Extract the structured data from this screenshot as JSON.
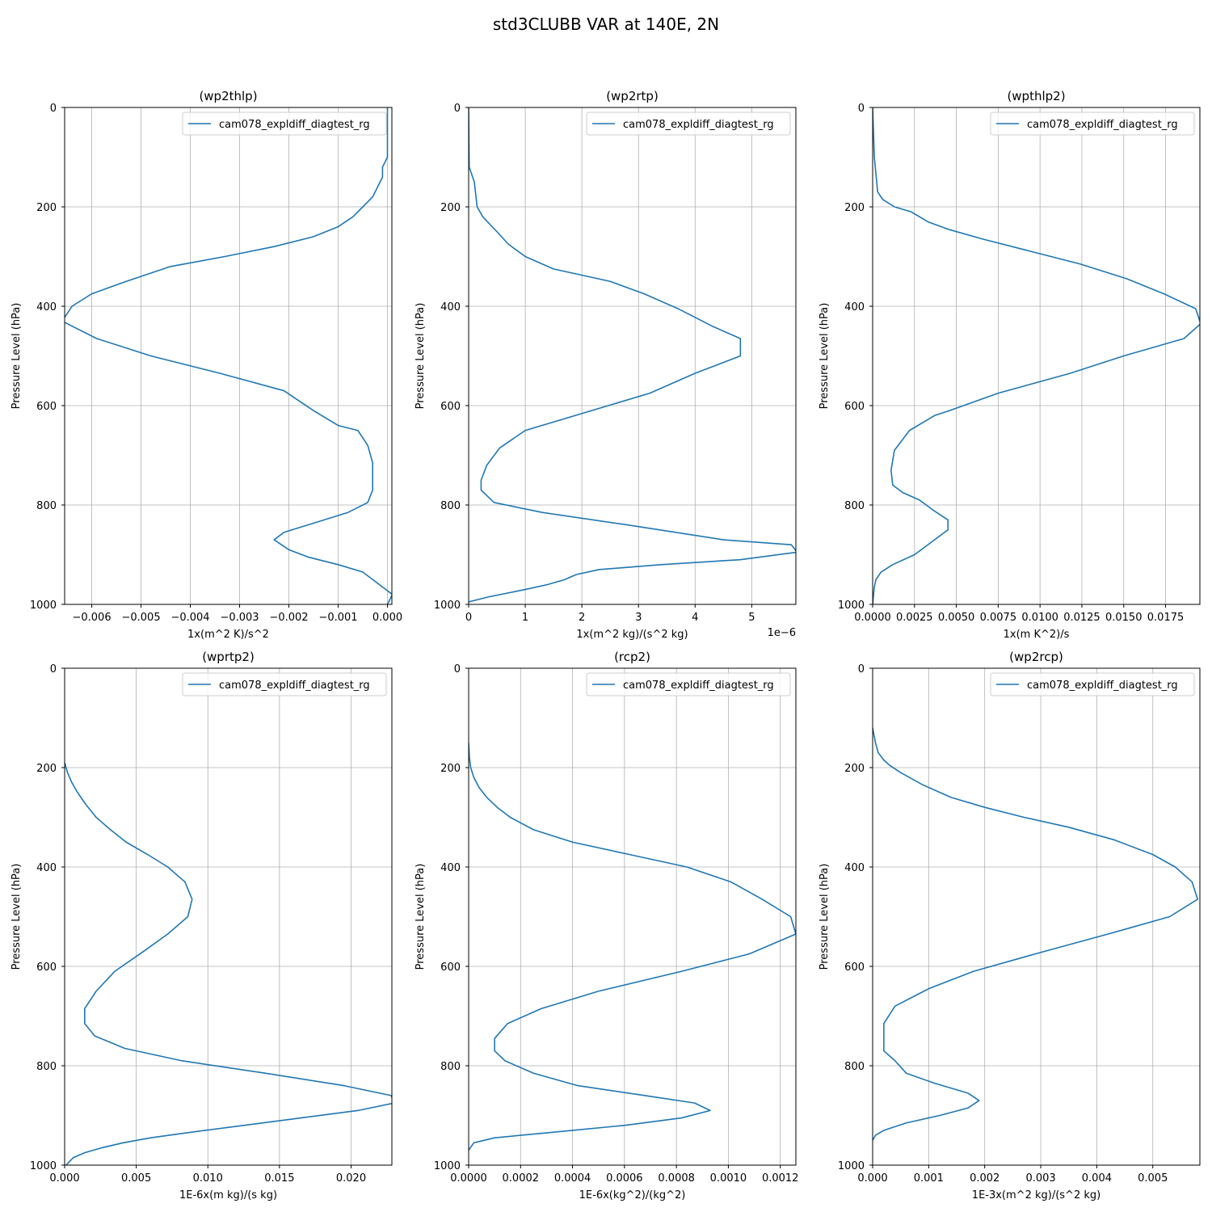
{
  "figure_title": "std3CLUBB VAR at 140E, 2N",
  "colors": {
    "line": "#1f77b4",
    "grid": "#b0b0b0"
  },
  "chart_data": [
    {
      "type": "line",
      "title": "(wp2thlp)",
      "xlabel": "1x(m^2 K)/s^2",
      "ylabel": "Pressure Level (hPa)",
      "legend": "cam078_expldiff_diagtest_rg",
      "legend_position": "upper right",
      "grid": true,
      "xlim": [
        -0.00655,
        9e-05
      ],
      "ylim": [
        1000,
        0
      ],
      "xticks": [
        -0.006,
        -0.005,
        -0.004,
        -0.003,
        -0.002,
        -0.001,
        0.0
      ],
      "xtick_labels": [
        "−0.006",
        "−0.005",
        "−0.004",
        "−0.003",
        "−0.002",
        "−0.001",
        "0.000"
      ],
      "yticks": [
        0,
        200,
        400,
        600,
        800,
        1000
      ],
      "ytick_labels": [
        "0",
        "200",
        "400",
        "600",
        "800",
        "1000"
      ],
      "offset_label": "",
      "series": [
        {
          "name": "cam078_expldiff_diagtest_rg",
          "x": [
            0.0,
            0.0,
            -0.0001,
            -0.0001,
            -0.0002,
            -0.0003,
            -0.0005,
            -0.0007,
            -0.001,
            -0.0015,
            -0.0023,
            -0.0033,
            -0.0044,
            -0.0053,
            -0.006,
            -0.0064,
            -0.0066,
            -0.0059,
            -0.0048,
            -0.0034,
            -0.0021,
            -0.0015,
            -0.001,
            -0.0006,
            -0.0004,
            -0.0003,
            -0.0003,
            -0.0004,
            -0.0008,
            -0.0021,
            -0.0023,
            -0.002,
            -0.0016,
            -0.001,
            -0.0005,
            -0.0003,
            -0.0001,
            0.0001,
            0.0
          ],
          "y": [
            0,
            100,
            120,
            140,
            160,
            180,
            200,
            220,
            240,
            260,
            280,
            300,
            320,
            350,
            375,
            400,
            430,
            465,
            500,
            535,
            570,
            610,
            640,
            650,
            680,
            715,
            770,
            795,
            815,
            855,
            870,
            890,
            905,
            920,
            935,
            950,
            965,
            980,
            1000
          ]
        }
      ]
    },
    {
      "type": "line",
      "title": "(wp2rtp)",
      "xlabel": "1x(m^2 kg)/(s^2 kg)",
      "ylabel": "Pressure Level (hPa)",
      "legend": "cam078_expldiff_diagtest_rg",
      "legend_position": "upper right",
      "grid": true,
      "xlim": [
        0,
        5.78e-06
      ],
      "ylim": [
        1000,
        0
      ],
      "xticks": [
        0,
        1e-06,
        2e-06,
        3e-06,
        4e-06,
        5e-06
      ],
      "xtick_labels": [
        "0",
        "1",
        "2",
        "3",
        "4",
        "5"
      ],
      "yticks": [
        0,
        200,
        400,
        600,
        800,
        1000
      ],
      "ytick_labels": [
        "0",
        "200",
        "400",
        "600",
        "800",
        "1000"
      ],
      "offset_label": "1e−6",
      "series": [
        {
          "name": "cam078_expldiff_diagtest_rg",
          "x": [
            0,
            1e-08,
            1e-07,
            1.5e-07,
            2.5e-07,
            5e-07,
            7e-07,
            1e-06,
            1.5e-06,
            2.5e-06,
            3.1e-06,
            3.7e-06,
            4.3e-06,
            4.8e-06,
            4.8e-06,
            4e-06,
            3.2e-06,
            1e-06,
            5.5e-07,
            3.2e-07,
            2.2e-07,
            2.2e-07,
            4.5e-07,
            1.3e-06,
            2.8e-06,
            4.5e-06,
            5.7e-06,
            5.8e-06,
            4.8e-06,
            3.4e-06,
            2.3e-06,
            1.9e-06,
            1.8e-06,
            1.7e-06,
            1.4e-06,
            1e-06,
            3.5e-07,
            0
          ],
          "y": [
            0,
            120,
            150,
            200,
            220,
            250,
            275,
            300,
            325,
            350,
            375,
            405,
            440,
            465,
            500,
            535,
            575,
            650,
            685,
            720,
            750,
            770,
            795,
            815,
            840,
            870,
            880,
            895,
            910,
            920,
            930,
            940,
            945,
            950,
            960,
            970,
            985,
            995
          ]
        }
      ]
    },
    {
      "type": "line",
      "title": "(wpthlp2)",
      "xlabel": "1x(m K^2)/s",
      "ylabel": "Pressure Level (hPa)",
      "legend": "cam078_expldiff_diagtest_rg",
      "legend_position": "upper right",
      "grid": true,
      "xlim": [
        0,
        0.01955
      ],
      "ylim": [
        1000,
        0
      ],
      "xticks": [
        0,
        0.0025,
        0.005,
        0.0075,
        0.01,
        0.0125,
        0.015,
        0.0175
      ],
      "xtick_labels": [
        "0.0000",
        "0.0025",
        "0.0050",
        "0.0075",
        "0.0100",
        "0.0125",
        "0.0150",
        "0.0175"
      ],
      "yticks": [
        0,
        200,
        400,
        600,
        800,
        1000
      ],
      "ytick_labels": [
        "0",
        "200",
        "400",
        "600",
        "800",
        "1000"
      ],
      "offset_label": "",
      "series": [
        {
          "name": "cam078_expldiff_diagtest_rg",
          "x": [
            0,
            0.0001,
            0.0003,
            0.0006,
            0.0013,
            0.0023,
            0.0033,
            0.0045,
            0.0066,
            0.0095,
            0.0124,
            0.0152,
            0.0174,
            0.0193,
            0.0196,
            0.0186,
            0.015,
            0.0118,
            0.0075,
            0.0046,
            0.0037,
            0.0022,
            0.0013,
            0.0011,
            0.0012,
            0.0018,
            0.0028,
            0.0036,
            0.0045,
            0.0045,
            0.0035,
            0.0025,
            0.0012,
            0.0005,
            0.0002,
            0.0001,
            0
          ],
          "y": [
            0,
            100,
            170,
            185,
            200,
            210,
            230,
            245,
            265,
            290,
            315,
            345,
            375,
            405,
            435,
            465,
            500,
            535,
            575,
            610,
            620,
            650,
            690,
            730,
            760,
            775,
            790,
            810,
            830,
            850,
            875,
            900,
            920,
            935,
            950,
            965,
            1000
          ]
        }
      ]
    },
    {
      "type": "line",
      "title": "(wprtp2)",
      "xlabel": "1E-6x(m kg)/(s kg)",
      "ylabel": "Pressure Level (hPa)",
      "legend": "cam078_expldiff_diagtest_rg",
      "legend_position": "upper right",
      "grid": true,
      "xlim": [
        0,
        0.02285
      ],
      "ylim": [
        1000,
        0
      ],
      "xticks": [
        0,
        0.005,
        0.01,
        0.015,
        0.02
      ],
      "xtick_labels": [
        "0.000",
        "0.005",
        "0.010",
        "0.015",
        "0.020"
      ],
      "yticks": [
        0,
        200,
        400,
        600,
        800,
        1000
      ],
      "ytick_labels": [
        "0",
        "200",
        "400",
        "600",
        "800",
        "1000"
      ],
      "offset_label": "",
      "series": [
        {
          "name": "cam078_expldiff_diagtest_rg",
          "x": [
            0,
            0.0002,
            0.0005,
            0.0009,
            0.0015,
            0.0022,
            0.0032,
            0.0043,
            0.0058,
            0.0072,
            0.0084,
            0.0089,
            0.0086,
            0.0072,
            0.0055,
            0.0035,
            0.0022,
            0.0014,
            0.0014,
            0.0021,
            0.0042,
            0.0082,
            0.014,
            0.0195,
            0.0228,
            0.023,
            0.0205,
            0.0165,
            0.0125,
            0.0085,
            0.006,
            0.0041,
            0.0026,
            0.0014,
            0.0006,
            0.0001
          ],
          "y": [
            190,
            210,
            230,
            250,
            275,
            300,
            325,
            350,
            375,
            400,
            430,
            465,
            500,
            535,
            570,
            610,
            650,
            685,
            715,
            740,
            765,
            790,
            815,
            840,
            860,
            875,
            890,
            905,
            920,
            935,
            945,
            955,
            965,
            975,
            985,
            1000
          ]
        }
      ]
    },
    {
      "type": "line",
      "title": "(rcp2)",
      "xlabel": "1E-6x(kg^2)/(kg^2)",
      "ylabel": "Pressure Level (hPa)",
      "legend": "cam078_expldiff_diagtest_rg",
      "legend_position": "upper right",
      "grid": true,
      "xlim": [
        0,
        0.00126
      ],
      "ylim": [
        1000,
        0
      ],
      "xticks": [
        0,
        0.0002,
        0.0004,
        0.0006,
        0.0008,
        0.001,
        0.0012
      ],
      "xtick_labels": [
        "0.0000",
        "0.0002",
        "0.0004",
        "0.0006",
        "0.0008",
        "0.0010",
        "0.0012"
      ],
      "yticks": [
        0,
        200,
        400,
        600,
        800,
        1000
      ],
      "ytick_labels": [
        "0",
        "200",
        "400",
        "600",
        "800",
        "1000"
      ],
      "offset_label": "",
      "series": [
        {
          "name": "cam078_expldiff_diagtest_rg",
          "x": [
            0,
            3e-06,
            8e-06,
            2e-05,
            4e-05,
            7e-05,
            0.00011,
            0.00016,
            0.00025,
            0.0004,
            0.00062,
            0.00084,
            0.00101,
            0.00113,
            0.00124,
            0.00126,
            0.00108,
            0.00082,
            0.0005,
            0.00028,
            0.00015,
            0.0001,
            0.0001,
            0.00014,
            0.00025,
            0.00042,
            0.00068,
            0.00087,
            0.00093,
            0.00082,
            0.0006,
            0.0003,
            0.0001,
            2e-05,
            0
          ],
          "y": [
            150,
            180,
            200,
            220,
            240,
            260,
            280,
            300,
            325,
            350,
            375,
            400,
            430,
            465,
            500,
            535,
            575,
            610,
            650,
            685,
            715,
            745,
            770,
            790,
            815,
            840,
            860,
            875,
            890,
            905,
            920,
            935,
            945,
            955,
            970
          ]
        }
      ]
    },
    {
      "type": "line",
      "title": "(wp2rcp)",
      "xlabel": "1E-3x(m^2 kg)/(s^2 kg)",
      "ylabel": "Pressure Level (hPa)",
      "legend": "cam078_expldiff_diagtest_rg",
      "legend_position": "upper right",
      "grid": true,
      "xlim": [
        0,
        0.00584
      ],
      "ylim": [
        1000,
        0
      ],
      "xticks": [
        0,
        0.001,
        0.002,
        0.003,
        0.004,
        0.005
      ],
      "xtick_labels": [
        "0.000",
        "0.001",
        "0.002",
        "0.003",
        "0.004",
        "0.005"
      ],
      "yticks": [
        0,
        200,
        400,
        600,
        800,
        1000
      ],
      "ytick_labels": [
        "0",
        "200",
        "400",
        "600",
        "800",
        "1000"
      ],
      "offset_label": "",
      "series": [
        {
          "name": "cam078_expldiff_diagtest_rg",
          "x": [
            0,
            5e-05,
            0.0001,
            0.0002,
            0.0003,
            0.0005,
            0.0009,
            0.0014,
            0.002,
            0.0027,
            0.0035,
            0.0043,
            0.005,
            0.0054,
            0.0057,
            0.0058,
            0.0053,
            0.0042,
            0.0029,
            0.0018,
            0.001,
            0.0004,
            0.0002,
            0.0002,
            0.0002,
            0.0004,
            0.0006,
            0.0011,
            0.0017,
            0.0019,
            0.0017,
            0.0012,
            0.0006,
            0.0002,
            5e-05,
            0
          ],
          "y": [
            120,
            150,
            170,
            185,
            195,
            210,
            235,
            260,
            280,
            300,
            320,
            345,
            375,
            400,
            430,
            465,
            500,
            535,
            575,
            610,
            645,
            680,
            715,
            745,
            770,
            790,
            815,
            835,
            855,
            870,
            885,
            900,
            915,
            930,
            940,
            950
          ]
        }
      ]
    }
  ]
}
